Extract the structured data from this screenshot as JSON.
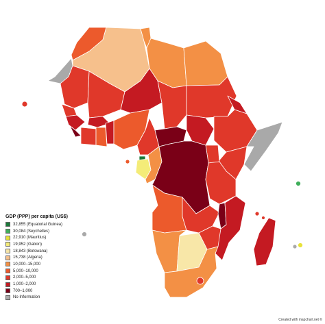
{
  "legend": {
    "title": "GDP (PPP) per capita (US$)",
    "items": [
      {
        "label": "32,855 (Equatorial Guinea)",
        "color": "#1b7a3a"
      },
      {
        "label": "30,084 (Seychelles)",
        "color": "#3fae5a"
      },
      {
        "label": "22,910 (Mauritius)",
        "color": "#e8e23a"
      },
      {
        "label": "19,952 (Gabon)",
        "color": "#f4ec78"
      },
      {
        "label": "18,843 (Botswana)",
        "color": "#f8e7a8"
      },
      {
        "label": "15,738 (Algeria)",
        "color": "#f6c08c"
      },
      {
        "label": "10,000–15,000",
        "color": "#f39045"
      },
      {
        "label": "5,000–10,000",
        "color": "#ec5a2c"
      },
      {
        "label": "2,000–5,000",
        "color": "#e0382a"
      },
      {
        "label": "1,000–2,000",
        "color": "#c41a22"
      },
      {
        "label": "700–1,000",
        "color": "#7a0017"
      },
      {
        "label": "No Information",
        "color": "#a9a9a9"
      }
    ]
  },
  "credit": "Created with mapchart.net ©",
  "colors": {
    "ocean": "#ffffff",
    "border": "#ffffff"
  }
}
